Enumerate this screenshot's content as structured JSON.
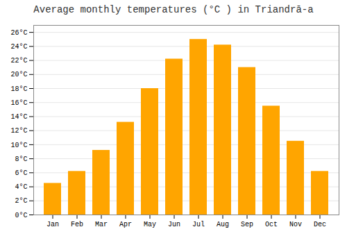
{
  "chart_data": {
    "type": "bar",
    "title": "Average monthly temperatures (°C ) in Triandrā-a",
    "categories": [
      "Jan",
      "Feb",
      "Mar",
      "Apr",
      "May",
      "Jun",
      "Jul",
      "Aug",
      "Sep",
      "Oct",
      "Nov",
      "Dec"
    ],
    "values": [
      4.5,
      6.2,
      9.2,
      13.2,
      18.0,
      22.2,
      25.0,
      24.2,
      21.0,
      15.5,
      10.5,
      6.2
    ],
    "color": "#FFA500",
    "ylim": [
      0,
      27
    ],
    "yticks": [
      {
        "value": 0,
        "label": "0°C"
      },
      {
        "value": 2,
        "label": "2°C"
      },
      {
        "value": 4,
        "label": "4°C"
      },
      {
        "value": 6,
        "label": "6°C"
      },
      {
        "value": 8,
        "label": "8°C"
      },
      {
        "value": 10,
        "label": "10°C"
      },
      {
        "value": 12,
        "label": "12°C"
      },
      {
        "value": 14,
        "label": "14°C"
      },
      {
        "value": 16,
        "label": "16°C"
      },
      {
        "value": 18,
        "label": "18°C"
      },
      {
        "value": 20,
        "label": "20°C"
      },
      {
        "value": 22,
        "label": "22°C"
      },
      {
        "value": 24,
        "label": "24°C"
      },
      {
        "value": 26,
        "label": "26°C"
      }
    ],
    "grid": true
  }
}
